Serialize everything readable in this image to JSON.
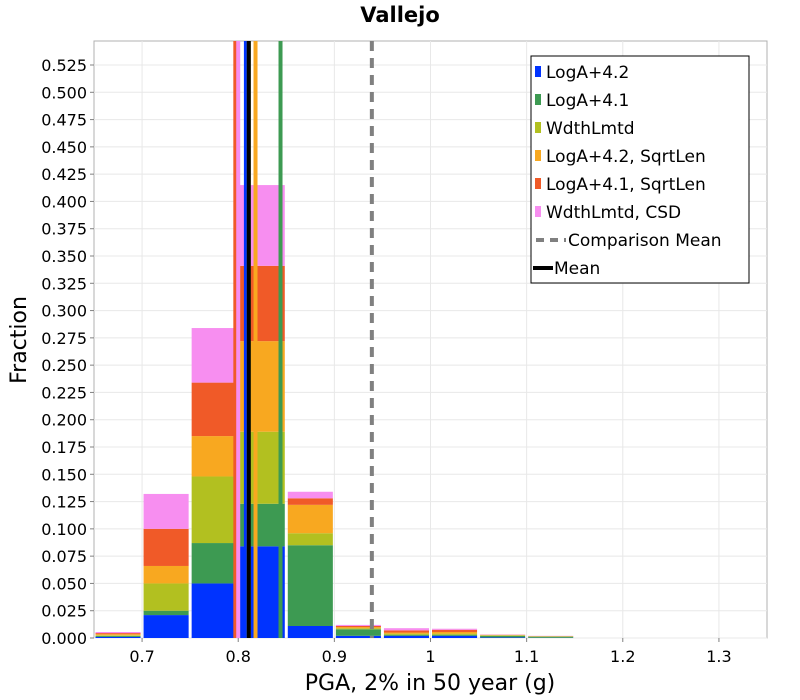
{
  "chart_data": {
    "type": "bar",
    "stacked": true,
    "title": "Vallejo",
    "xlabel": "PGA, 2% in 50 year (g)",
    "ylabel": "Fraction",
    "xlim": [
      0.65,
      1.35
    ],
    "ylim": [
      0,
      0.547
    ],
    "bin_width": 0.05,
    "grid": true,
    "legend_position": "top-right",
    "x_ticks": [
      0.7,
      0.8,
      0.9,
      1,
      1.1,
      1.2,
      1.3
    ],
    "x_tick_labels": [
      "0.7",
      "0.8",
      "0.9",
      "1",
      "1.1",
      "1.2",
      "1.3"
    ],
    "y_ticks": [
      0,
      0.025,
      0.05,
      0.075,
      0.1,
      0.125,
      0.15,
      0.175,
      0.2,
      0.225,
      0.25,
      0.275,
      0.3,
      0.325,
      0.35,
      0.375,
      0.4,
      0.425,
      0.45,
      0.475,
      0.5,
      0.525
    ],
    "y_tick_labels": [
      "0.000",
      "0.025",
      "0.050",
      "0.075",
      "0.100",
      "0.125",
      "0.150",
      "0.175",
      "0.200",
      "0.225",
      "0.250",
      "0.275",
      "0.300",
      "0.325",
      "0.350",
      "0.375",
      "0.400",
      "0.425",
      "0.450",
      "0.475",
      "0.500",
      "0.525"
    ],
    "bin_centers": [
      0.675,
      0.725,
      0.775,
      0.825,
      0.875,
      0.925,
      0.975,
      1.025,
      1.075,
      1.125
    ],
    "series": [
      {
        "name": "LogA+4.2",
        "color": "#0033ff",
        "values": [
          0.001,
          0.021,
          0.05,
          0.084,
          0.011,
          0.002,
          0.002,
          0.002,
          0.0005,
          0.0002
        ]
      },
      {
        "name": "LogA+4.1",
        "color": "#3d9a52",
        "values": [
          0.001,
          0.004,
          0.037,
          0.039,
          0.074,
          0.006,
          0.001,
          0.001,
          0.0015,
          0.001
        ]
      },
      {
        "name": "WdthLmtd",
        "color": "#b2c020",
        "values": [
          0.0005,
          0.025,
          0.061,
          0.066,
          0.011,
          0.001,
          0.001,
          0.001,
          0.0005,
          0.0003
        ]
      },
      {
        "name": "LogA+4.2, SqrtLen",
        "color": "#f8a820",
        "values": [
          0.001,
          0.016,
          0.037,
          0.083,
          0.026,
          0.001,
          0.001,
          0.0015,
          0.0002,
          0.0002
        ]
      },
      {
        "name": "LogA+4.1, SqrtLen",
        "color": "#f05a28",
        "values": [
          0.001,
          0.034,
          0.049,
          0.069,
          0.006,
          0.001,
          0.002,
          0.002,
          0.0003,
          0.0001
        ]
      },
      {
        "name": "WdthLmtd, CSD",
        "color": "#f78ef0",
        "values": [
          0.001,
          0.032,
          0.05,
          0.074,
          0.006,
          0.001,
          0.002,
          0.001,
          0.0002,
          0.0002
        ]
      }
    ],
    "mean_lines": [
      {
        "name": "LogA+4.2",
        "color": "#0033ff",
        "x": 0.808
      },
      {
        "name": "LogA+4.1",
        "color": "#3d9a52",
        "x": 0.844
      },
      {
        "name": "WdthLmtd",
        "color": "#b2c020",
        "x": 0.811
      },
      {
        "name": "LogA+4.2, SqrtLen",
        "color": "#f8a820",
        "x": 0.818
      },
      {
        "name": "LogA+4.1, SqrtLen",
        "color": "#f05a28",
        "x": 0.797
      },
      {
        "name": "WdthLmtd, CSD",
        "color": "#f78ef0",
        "x": 0.8
      }
    ],
    "comparison_mean": {
      "name": "Comparison Mean",
      "color": "#808080",
      "x": 0.939
    },
    "mean": {
      "name": "Mean",
      "color": "#000000",
      "x": 0.811
    },
    "legend": [
      {
        "label": "LogA+4.2",
        "color": "#0033ff",
        "kind": "square"
      },
      {
        "label": "LogA+4.1",
        "color": "#3d9a52",
        "kind": "square"
      },
      {
        "label": "WdthLmtd",
        "color": "#b2c020",
        "kind": "square"
      },
      {
        "label": "LogA+4.2, SqrtLen",
        "color": "#f8a820",
        "kind": "square"
      },
      {
        "label": "LogA+4.1, SqrtLen",
        "color": "#f05a28",
        "kind": "square"
      },
      {
        "label": "WdthLmtd, CSD",
        "color": "#f78ef0",
        "kind": "square"
      },
      {
        "label": "Comparison Mean",
        "color": "#808080",
        "kind": "dashed"
      },
      {
        "label": "Mean",
        "color": "#000000",
        "kind": "line"
      }
    ]
  }
}
